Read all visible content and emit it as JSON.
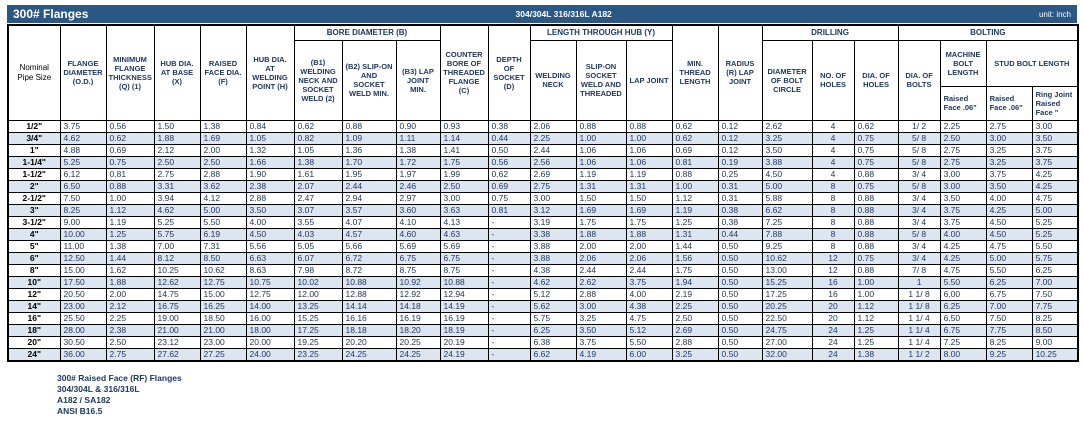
{
  "title_bar": {
    "title": "300# Flanges",
    "material": "304/304L 316/316L A182",
    "unit": "unit: inch"
  },
  "header": {
    "nominal": "Nominal Pipe Size",
    "od": "FLANGE DIAMETER (O.D.)",
    "q": "MINIMUM FLANGE THICKNESS (Q) (1)",
    "x": "HUB DIA. AT BASE (X)",
    "f": "RAISED FACE DIA. (F)",
    "h": "HUB DIA. AT WELDING POINT (H)",
    "b1": "(B1) WELDING NECK AND SOCKET WELD (2)",
    "b2": "(B2) SLIP-ON AND SOCKET WELD MIN.",
    "b3": "(B3) LAP JOINT MIN.",
    "c": "COUNTER BORE OF THREADED FLANGE (C)",
    "d": "DEPTH OF SOCKET (D)",
    "wn": "WELDING NECK",
    "so": "SLIP-ON SOCKET WELD AND THREADED",
    "lj": "LAP JOINT",
    "mtl": "MIN. THREAD LENGTH",
    "r": "RADIUS (R) LAP JOINT",
    "dbc": "DIAMETER OF BOLT CIRCLE",
    "noh": "NO. OF HOLES",
    "doh": "DIA. OF HOLES",
    "dob": "DIA. OF BOLTS",
    "groups": {
      "bore": "BORE DIAMETER (B)",
      "length_hub": "LENGTH THROUGH HUB (Y)",
      "drilling": "DRILLING",
      "bolting": "BOLTING",
      "machine_bolt": "MACHINE BOLT LENGTH",
      "stud_bolt": "STUD BOLT LENGTH"
    },
    "subs": {
      "machine_rf": "Raised Face .06\"",
      "stud_rf": "Raised Face .06\"",
      "stud_rj": "Ring Joint Raised Face \""
    }
  },
  "rows": [
    [
      "1/2\"",
      "3.75",
      "0.56",
      "1.50",
      "1.38",
      "0.84",
      "0.62",
      "0.88",
      "0.90",
      "0.93",
      "0.38",
      "2.06",
      "0.88",
      "0.88",
      "0.62",
      "0.12",
      "2.62",
      "4",
      "0.62",
      "1/ 2",
      "2.25",
      "2.75",
      "3.00"
    ],
    [
      "3/4\"",
      "4.62",
      "0.62",
      "1.88",
      "1.69",
      "1.05",
      "0.82",
      "1.09",
      "1.11",
      "1.14",
      "0.44",
      "2.25",
      "1.00",
      "1.00",
      "0.62",
      "0.12",
      "3.25",
      "4",
      "0.75",
      "5/ 8",
      "2.50",
      "3.00",
      "3.50"
    ],
    [
      "1\"",
      "4.88",
      "0.69",
      "2.12",
      "2.00",
      "1.32",
      "1.05",
      "1.36",
      "1.38",
      "1.41",
      "0.50",
      "2.44",
      "1.06",
      "1.06",
      "0.69",
      "0.12",
      "3.50",
      "4",
      "0.75",
      "5/ 8",
      "2.75",
      "3.25",
      "3.75"
    ],
    [
      "1-1/4\"",
      "5.25",
      "0.75",
      "2.50",
      "2.50",
      "1.66",
      "1.38",
      "1.70",
      "1.72",
      "1.75",
      "0.56",
      "2.56",
      "1.06",
      "1.06",
      "0.81",
      "0.19",
      "3.88",
      "4",
      "0.75",
      "5/ 8",
      "2.75",
      "3.25",
      "3.75"
    ],
    [
      "1-1/2\"",
      "6.12",
      "0.81",
      "2.75",
      "2.88",
      "1.90",
      "1.61",
      "1.95",
      "1.97",
      "1.99",
      "0.62",
      "2.69",
      "1.19",
      "1.19",
      "0.88",
      "0.25",
      "4.50",
      "4",
      "0.88",
      "3/ 4",
      "3.00",
      "3.75",
      "4.25"
    ],
    [
      "2\"",
      "6.50",
      "0.88",
      "3.31",
      "3.62",
      "2.38",
      "2.07",
      "2.44",
      "2.46",
      "2.50",
      "0.69",
      "2.75",
      "1.31",
      "1.31",
      "1.00",
      "0.31",
      "5.00",
      "8",
      "0.75",
      "5/ 8",
      "3.00",
      "3.50",
      "4.25"
    ],
    [
      "2-1/2\"",
      "7.50",
      "1.00",
      "3.94",
      "4.12",
      "2.88",
      "2.47",
      "2.94",
      "2.97",
      "3.00",
      "0.75",
      "3.00",
      "1.50",
      "1.50",
      "1.12",
      "0.31",
      "5.88",
      "8",
      "0.88",
      "3/ 4",
      "3.50",
      "4.00",
      "4.75"
    ],
    [
      "3\"",
      "8.25",
      "1.12",
      "4.62",
      "5.00",
      "3.50",
      "3.07",
      "3.57",
      "3.60",
      "3.63",
      "0.81",
      "3.12",
      "1.69",
      "1.69",
      "1.19",
      "0.38",
      "6.62",
      "8",
      "0.88",
      "3/ 4",
      "3.75",
      "4.25",
      "5.00"
    ],
    [
      "3-1/2\"",
      "9.00",
      "1.19",
      "5.25",
      "5.50",
      "4.00",
      "3.55",
      "4.07",
      "4.10",
      "4.13",
      "-",
      "3.19",
      "1.75",
      "1.75",
      "1.25",
      "0.38",
      "7.25",
      "8",
      "0.88",
      "3/ 4",
      "3.75",
      "4.50",
      "5.25"
    ],
    [
      "4\"",
      "10.00",
      "1.25",
      "5.75",
      "6.19",
      "4.50",
      "4.03",
      "4.57",
      "4.60",
      "4.63",
      "-",
      "3.38",
      "1.88",
      "1.88",
      "1.31",
      "0.44",
      "7.88",
      "8",
      "0.88",
      "5/ 8",
      "4.00",
      "4.50",
      "5.25"
    ],
    [
      "5\"",
      "11.00",
      "1.38",
      "7.00",
      "7.31",
      "5.56",
      "5.05",
      "5.66",
      "5.69",
      "5.69",
      "-",
      "3.88",
      "2.00",
      "2.00",
      "1.44",
      "0.50",
      "9.25",
      "8",
      "0.88",
      "3/ 4",
      "4.25",
      "4.75",
      "5.50"
    ],
    [
      "6\"",
      "12.50",
      "1.44",
      "8.12",
      "8.50",
      "6.63",
      "6.07",
      "6.72",
      "6.75",
      "6.75",
      "-",
      "3.88",
      "2.06",
      "2.06",
      "1.56",
      "0.50",
      "10.62",
      "12",
      "0.75",
      "3/ 4",
      "4.25",
      "5.00",
      "5.75"
    ],
    [
      "8\"",
      "15.00",
      "1.62",
      "10.25",
      "10.62",
      "8.63",
      "7.98",
      "8.72",
      "8.75",
      "8.75",
      "-",
      "4.38",
      "2.44",
      "2.44",
      "1.75",
      "0.50",
      "13.00",
      "12",
      "0.88",
      "7/ 8",
      "4.75",
      "5.50",
      "6.25"
    ],
    [
      "10\"",
      "17.50",
      "1.88",
      "12.62",
      "12.75",
      "10.75",
      "10.02",
      "10.88",
      "10.92",
      "10.88",
      "-",
      "4.62",
      "2.62",
      "3.75",
      "1.94",
      "0.50",
      "15.25",
      "16",
      "1.00",
      "1",
      "5.50",
      "6.25",
      "7.00"
    ],
    [
      "12\"",
      "20.50",
      "2.00",
      "14.75",
      "15.00",
      "12.75",
      "12.00",
      "12.88",
      "12.92",
      "12.94",
      "-",
      "5.12",
      "2.88",
      "4.00",
      "2.19",
      "0.50",
      "17.25",
      "16",
      "1.00",
      "1 1/ 8",
      "6.00",
      "6.75",
      "7.50"
    ],
    [
      "14\"",
      "23.00",
      "2.12",
      "16.75",
      "16.25",
      "14.00",
      "13.25",
      "14.14",
      "14.18",
      "14.19",
      "-",
      "5.62",
      "3.00",
      "4.38",
      "2.25",
      "0.50",
      "20.25",
      "20",
      "1.12",
      "1 1/ 8",
      "6.25",
      "7.00",
      "7.75"
    ],
    [
      "16\"",
      "25.50",
      "2.25",
      "19.00",
      "18.50",
      "16.00",
      "15.25",
      "16.16",
      "16.19",
      "16.19",
      "-",
      "5.75",
      "3.25",
      "4.75",
      "2.50",
      "0.50",
      "22.50",
      "20",
      "1.12",
      "1 1/ 4",
      "6.50",
      "7.50",
      "8.25"
    ],
    [
      "18\"",
      "28.00",
      "2.38",
      "21.00",
      "21.00",
      "18.00",
      "17.25",
      "18.18",
      "18.20",
      "18.19",
      "-",
      "6.25",
      "3.50",
      "5.12",
      "2.69",
      "0.50",
      "24.75",
      "24",
      "1.25",
      "1 1/ 4",
      "6.75",
      "7.75",
      "8.50"
    ],
    [
      "20\"",
      "30.50",
      "2.50",
      "23.12",
      "23.00",
      "20.00",
      "19.25",
      "20.20",
      "20.25",
      "20.19",
      "-",
      "6.38",
      "3.75",
      "5.50",
      "2.88",
      "0.50",
      "27.00",
      "24",
      "1.25",
      "1 1/ 4",
      "7.25",
      "8.25",
      "9.00"
    ],
    [
      "24\"",
      "36.00",
      "2.75",
      "27.62",
      "27.25",
      "24.00",
      "23.25",
      "24.25",
      "24.25",
      "24.19",
      "-",
      "6.62",
      "4.19",
      "6.00",
      "3.25",
      "0.50",
      "32.00",
      "24",
      "1.38",
      "1 1/ 2",
      "8.00",
      "9.25",
      "10.25"
    ]
  ],
  "notes": [
    "300# Raised Face (RF) Flanges",
    "304/304L & 316/316L",
    "A182 / SA182",
    "ANSI B16.5"
  ],
  "colors": {
    "title_bar_bg": "#2A5784",
    "header_text": "#1F3864",
    "row_stripe": "#DCE6F1",
    "border": "#000000"
  }
}
